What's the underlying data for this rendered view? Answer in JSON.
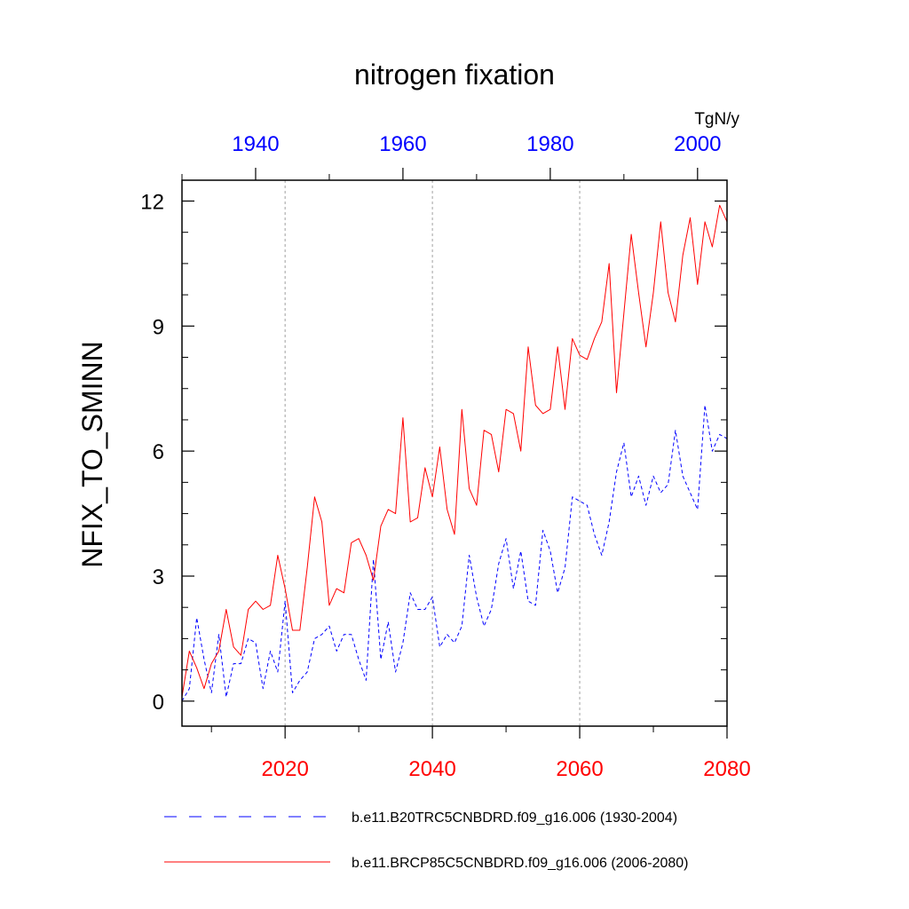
{
  "chart_data": {
    "type": "line",
    "title": "nitrogen fixation",
    "ylabel": "NFIX_TO_SMINN",
    "units": "TgN/y",
    "ylim": [
      -0.6,
      12.5
    ],
    "y_ticks": [
      0,
      3,
      6,
      9,
      12
    ],
    "y_tick_labels": [
      "0",
      "3",
      "6",
      "9",
      "12"
    ],
    "bottom_axis": {
      "range": [
        2006,
        2080
      ],
      "ticks": [
        2020,
        2040,
        2060,
        2080
      ],
      "tick_labels": [
        "2020",
        "2040",
        "2060",
        "2080"
      ],
      "color": "#ff0000"
    },
    "top_axis": {
      "range": [
        1930,
        2004
      ],
      "ticks": [
        1940,
        1960,
        1980,
        2000
      ],
      "tick_labels": [
        "1940",
        "1960",
        "1980",
        "2000"
      ],
      "color": "#0000ff"
    },
    "vertical_gridlines": [
      2020,
      2040,
      2060
    ],
    "series": [
      {
        "name": "b.e11.B20TRC5CNBDRD.f09_g16.006 (1930-2004)",
        "axis": "top",
        "color": "#0000ff",
        "dash": "dashed",
        "x_start": 1930,
        "values": [
          0.0,
          0.3,
          2.0,
          1.0,
          0.2,
          1.6,
          0.1,
          0.9,
          0.9,
          1.5,
          1.4,
          0.3,
          1.2,
          0.7,
          2.4,
          0.2,
          0.5,
          0.7,
          1.5,
          1.6,
          1.8,
          1.2,
          1.6,
          1.6,
          1.0,
          0.5,
          3.4,
          1.0,
          1.9,
          0.7,
          1.4,
          2.6,
          2.2,
          2.2,
          2.5,
          1.3,
          1.6,
          1.4,
          1.8,
          3.5,
          2.5,
          1.8,
          2.2,
          3.3,
          3.9,
          2.7,
          3.6,
          2.4,
          2.3,
          4.1,
          3.6,
          2.6,
          3.2,
          4.9,
          4.8,
          4.7,
          4.0,
          3.5,
          4.3,
          5.5,
          6.2,
          4.9,
          5.4,
          4.7,
          5.4,
          5.0,
          5.2,
          6.5,
          5.4,
          5.0,
          4.6,
          7.1,
          6.0,
          6.4,
          6.3
        ]
      },
      {
        "name": "b.e11.BRCP85C5CNBDRD.f09_g16.006 (2006-2080)",
        "axis": "bottom",
        "color": "#ff0000",
        "dash": "solid",
        "x_start": 2006,
        "values": [
          0.1,
          1.2,
          0.8,
          0.3,
          0.9,
          1.2,
          2.2,
          1.3,
          1.1,
          2.2,
          2.4,
          2.2,
          2.3,
          3.5,
          2.7,
          1.7,
          1.7,
          3.2,
          4.9,
          4.3,
          2.3,
          2.7,
          2.6,
          3.8,
          3.9,
          3.5,
          2.9,
          4.2,
          4.6,
          4.5,
          6.8,
          4.3,
          4.4,
          5.6,
          4.9,
          6.1,
          4.6,
          4.0,
          7.0,
          5.1,
          4.7,
          6.5,
          6.4,
          5.5,
          7.0,
          6.9,
          6.0,
          8.5,
          7.1,
          6.9,
          7.0,
          8.5,
          7.0,
          8.7,
          8.3,
          8.2,
          8.7,
          9.1,
          10.5,
          7.4,
          9.3,
          11.2,
          9.8,
          8.5,
          9.8,
          11.5,
          9.8,
          9.1,
          10.7,
          11.6,
          10.0,
          11.5,
          10.9,
          11.9,
          11.5
        ]
      }
    ]
  }
}
